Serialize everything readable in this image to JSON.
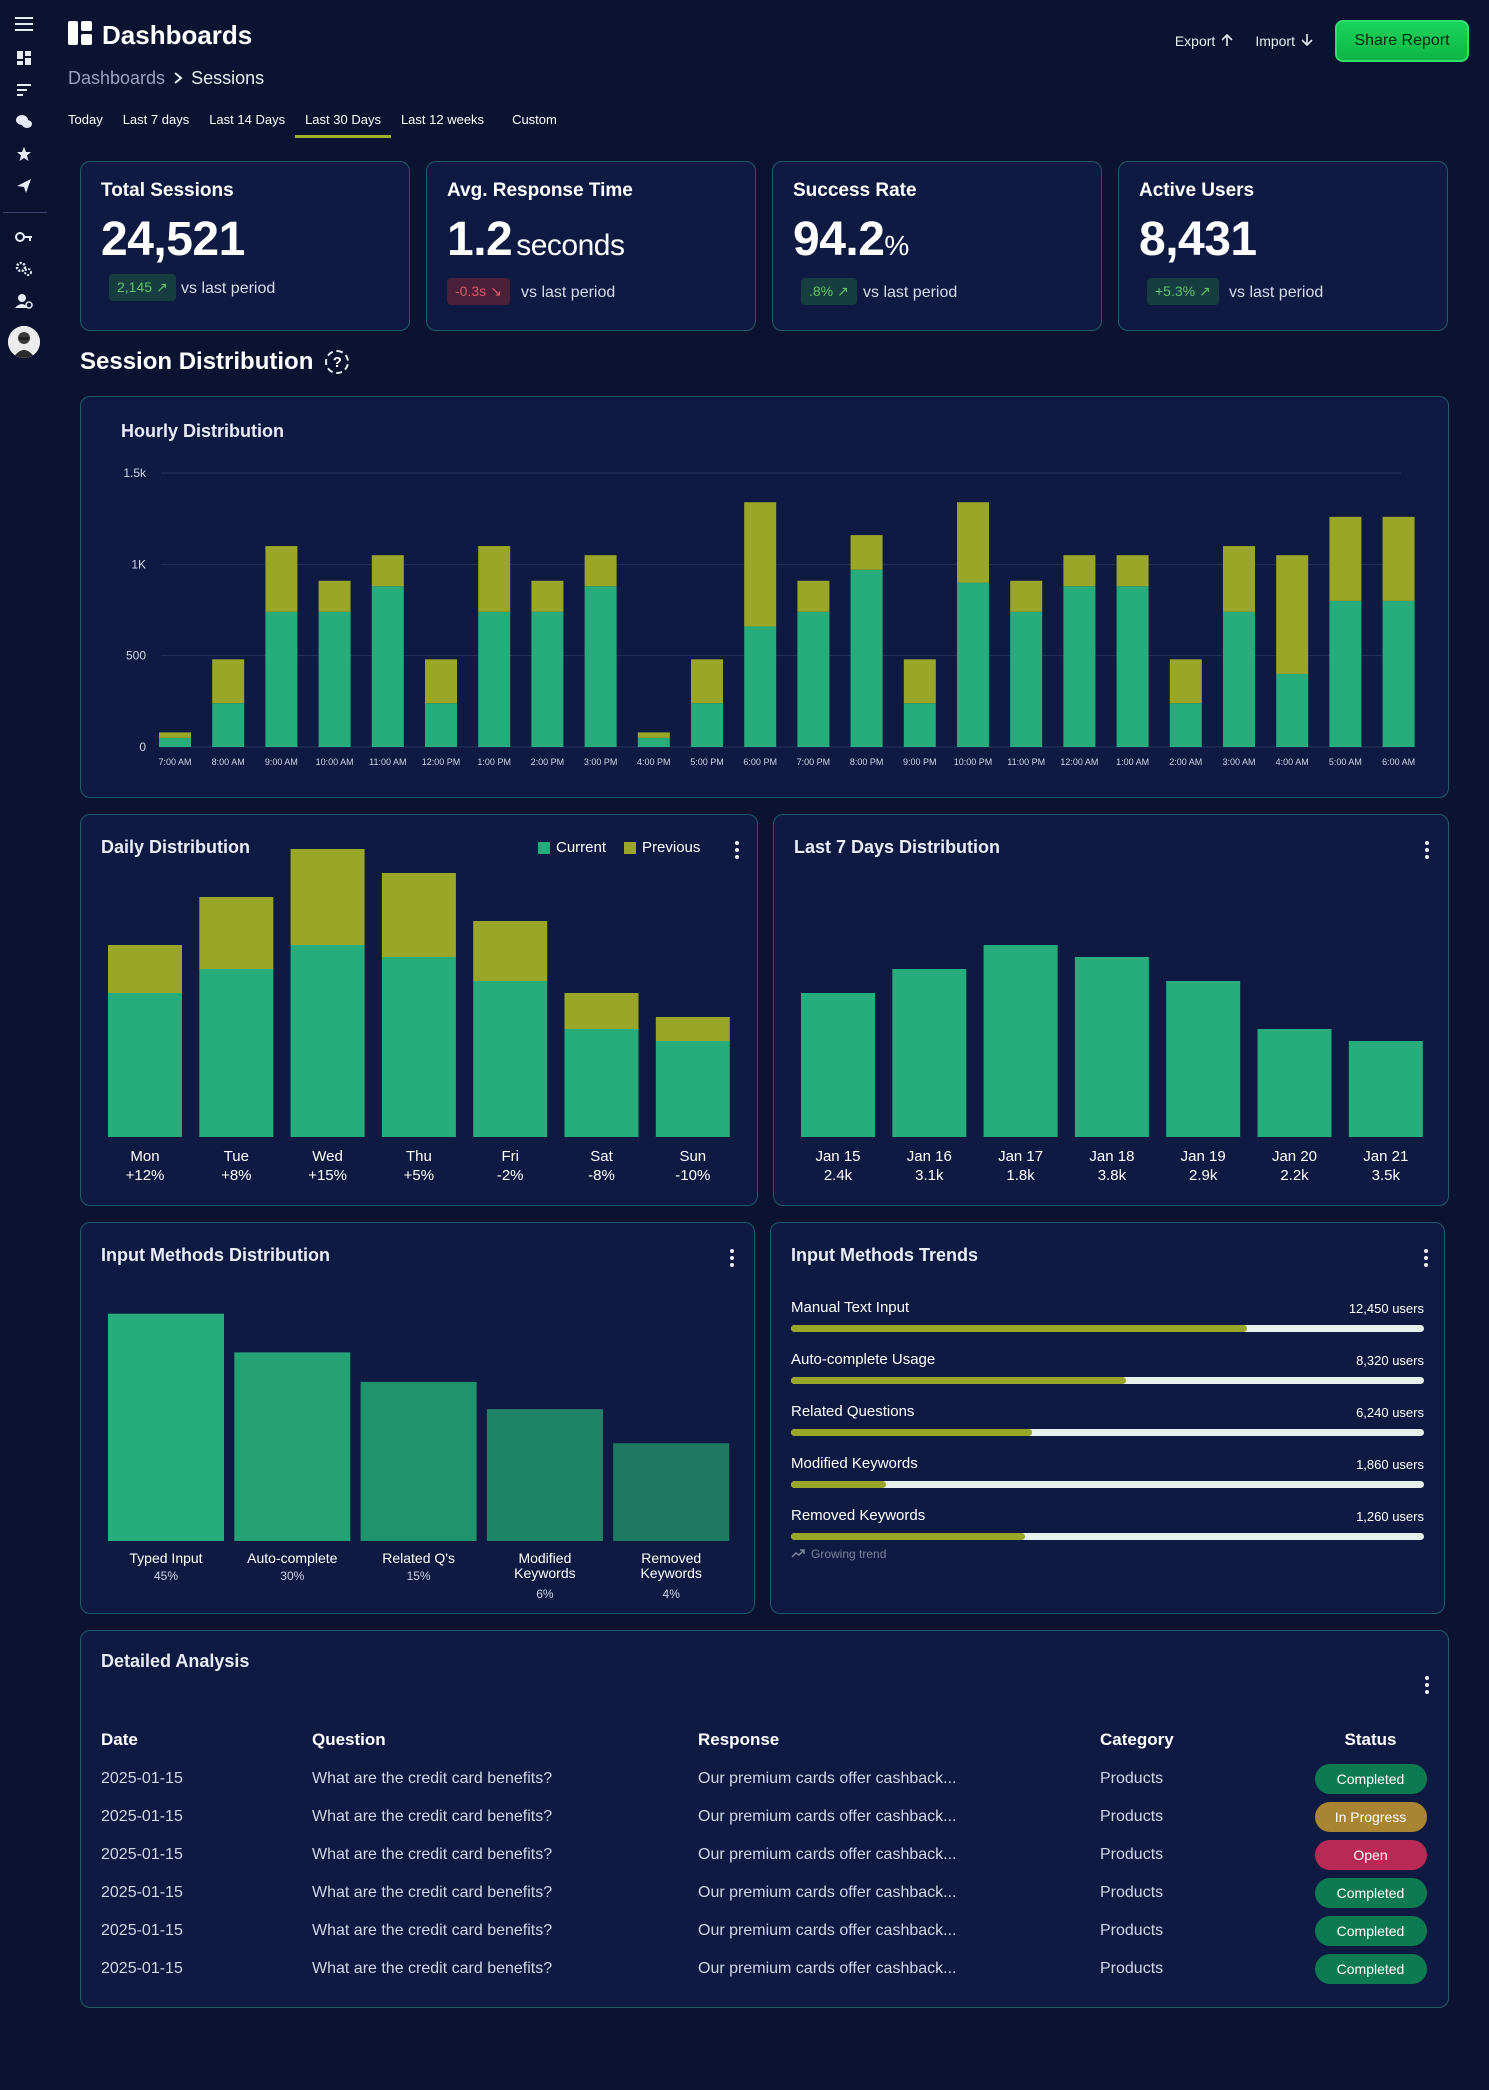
{
  "header": {
    "title": "Dashboards",
    "breadcrumb": [
      "Dashboards",
      "Sessions"
    ],
    "export_label": "Export",
    "import_label": "Import",
    "share_label": "Share Report"
  },
  "tabs": [
    "Today",
    "Last 7 days",
    "Last 14 Days",
    "Last 30 Days",
    "Last 12 weeks",
    "Custom"
  ],
  "active_tab": "Last 30 Days",
  "kpis": [
    {
      "title": "Total Sessions",
      "value": "24,521",
      "unit": "",
      "badge": "2,145",
      "trend": "up",
      "vs": "vs last period"
    },
    {
      "title": "Avg. Response Time",
      "value": "1.2",
      "unit": "seconds",
      "badge": "-0.3s",
      "trend": "down",
      "vs": "vs last period"
    },
    {
      "title": "Success Rate",
      "value": "94.2",
      "unit": "%",
      "badge": ".8%",
      "trend": "up",
      "vs": "vs last period"
    },
    {
      "title": "Active Users",
      "value": "8,431",
      "unit": "",
      "badge": "+5.3%",
      "trend": "up",
      "vs": "vs last period"
    }
  ],
  "section_title": "Session Distribution",
  "section_help": "?",
  "colors": {
    "current": "#27ad7b",
    "previous": "#9aa628",
    "background": "#0b1330",
    "card": "#0e1a42",
    "accent": "#1ad45a"
  },
  "hourly": {
    "title": "Hourly Distribution"
  },
  "daily": {
    "title": "Daily Distribution",
    "legend_current": "Current",
    "legend_previous": "Previous"
  },
  "last7": {
    "title": "Last 7 Days Distribution"
  },
  "input_methods": {
    "title": "Input Methods Distribution"
  },
  "trends": {
    "title": "Input Methods Trends",
    "footer": "Growing trend",
    "rows": [
      {
        "label": "Manual Text Input",
        "users": "12,450 users",
        "fill": 0.72
      },
      {
        "label": "Auto-complete Usage",
        "users": "8,320 users",
        "fill": 0.53
      },
      {
        "label": "Related Questions",
        "users": "6,240 users",
        "fill": 0.38
      },
      {
        "label": "Modified Keywords",
        "users": "1,860 users",
        "fill": 0.15
      },
      {
        "label": "Removed Keywords",
        "users": "1,260 users",
        "fill": 0.37
      }
    ]
  },
  "analysis": {
    "title": "Detailed Analysis",
    "columns": [
      "Date",
      "Question",
      "Response",
      "Category",
      "Status"
    ],
    "rows": [
      {
        "date": "2025-01-15",
        "question": "What are the credit card benefits?",
        "response": "Our premium cards offer cashback...",
        "category": "Products",
        "status": "Completed"
      },
      {
        "date": "2025-01-15",
        "question": "What are the credit card benefits?",
        "response": "Our premium cards offer cashback...",
        "category": "Products",
        "status": "In Progress"
      },
      {
        "date": "2025-01-15",
        "question": "What are the credit card benefits?",
        "response": "Our premium cards offer cashback...",
        "category": "Products",
        "status": "Open"
      },
      {
        "date": "2025-01-15",
        "question": "What are the credit card benefits?",
        "response": "Our premium cards offer cashback...",
        "category": "Products",
        "status": "Completed"
      },
      {
        "date": "2025-01-15",
        "question": "What are the credit card benefits?",
        "response": "Our premium cards offer cashback...",
        "category": "Products",
        "status": "Completed"
      },
      {
        "date": "2025-01-15",
        "question": "What are the credit card benefits?",
        "response": "Our premium cards offer cashback...",
        "category": "Products",
        "status": "Completed"
      }
    ]
  },
  "chart_data": [
    {
      "id": "hourly",
      "type": "bar",
      "stacked": true,
      "title": "Hourly Distribution",
      "categories": [
        "7:00 AM",
        "8:00 AM",
        "9:00 AM",
        "10:00 AM",
        "11:00 AM",
        "12:00 PM",
        "1:00 PM",
        "2:00 PM",
        "3:00 PM",
        "4:00 PM",
        "5:00 PM",
        "6:00 PM",
        "7:00 PM",
        "8:00 PM",
        "9:00 PM",
        "10:00 PM",
        "11:00 PM",
        "12:00 AM",
        "1:00 AM",
        "2:00 AM",
        "3:00 AM",
        "4:00 AM",
        "5:00 AM",
        "6:00 AM"
      ],
      "series": [
        {
          "name": "Current",
          "values": [
            50,
            240,
            740,
            740,
            880,
            240,
            740,
            740,
            880,
            50,
            240,
            660,
            740,
            970,
            240,
            900,
            740,
            880,
            880,
            240,
            740,
            400,
            800,
            800
          ]
        },
        {
          "name": "Previous",
          "values": [
            30,
            240,
            360,
            170,
            170,
            240,
            360,
            170,
            170,
            30,
            240,
            680,
            170,
            190,
            240,
            440,
            170,
            170,
            170,
            240,
            360,
            650,
            460,
            460
          ]
        }
      ],
      "yticks": [
        "0",
        "500",
        "1K",
        "1.5k"
      ],
      "ylim": [
        0,
        1500
      ]
    },
    {
      "id": "daily",
      "type": "bar",
      "stacked": true,
      "title": "Daily Distribution",
      "categories": [
        "Mon",
        "Tue",
        "Wed",
        "Thu",
        "Fri",
        "Sat",
        "Sun"
      ],
      "sublabels": [
        "+12%",
        "+8%",
        "+15%",
        "+5%",
        "-2%",
        "-8%",
        "-10%"
      ],
      "series": [
        {
          "name": "Current",
          "values": [
            60,
            70,
            80,
            75,
            65,
            45,
            40
          ]
        },
        {
          "name": "Previous",
          "values": [
            20,
            30,
            40,
            35,
            25,
            15,
            10
          ]
        }
      ],
      "ylim": [
        0,
        125
      ]
    },
    {
      "id": "last7",
      "type": "bar",
      "title": "Last 7 Days Distribution",
      "categories": [
        "Jan 15",
        "Jan 16",
        "Jan 17",
        "Jan 18",
        "Jan 19",
        "Jan 20",
        "Jan 21"
      ],
      "sublabels": [
        "2.4k",
        "3.1k",
        "1.8k",
        "3.8k",
        "2.9k",
        "2.2k",
        "3.5k"
      ],
      "values": [
        60,
        70,
        80,
        75,
        65,
        45,
        40
      ],
      "ylim": [
        0,
        125
      ]
    },
    {
      "id": "input",
      "type": "bar",
      "title": "Input Methods Distribution",
      "categories": [
        "Typed Input",
        "Auto-complete",
        "Related Q's",
        "Modified Keywords",
        "Removed Keywords"
      ],
      "sublabels": [
        "45%",
        "30%",
        "15%",
        "6%",
        "4%"
      ],
      "values": [
        100,
        83,
        70,
        58,
        43
      ],
      "colors": [
        "#27ad7b",
        "#24a275",
        "#21936c",
        "#1f8566",
        "#1d7a60"
      ],
      "ylim": [
        0,
        110
      ]
    }
  ]
}
